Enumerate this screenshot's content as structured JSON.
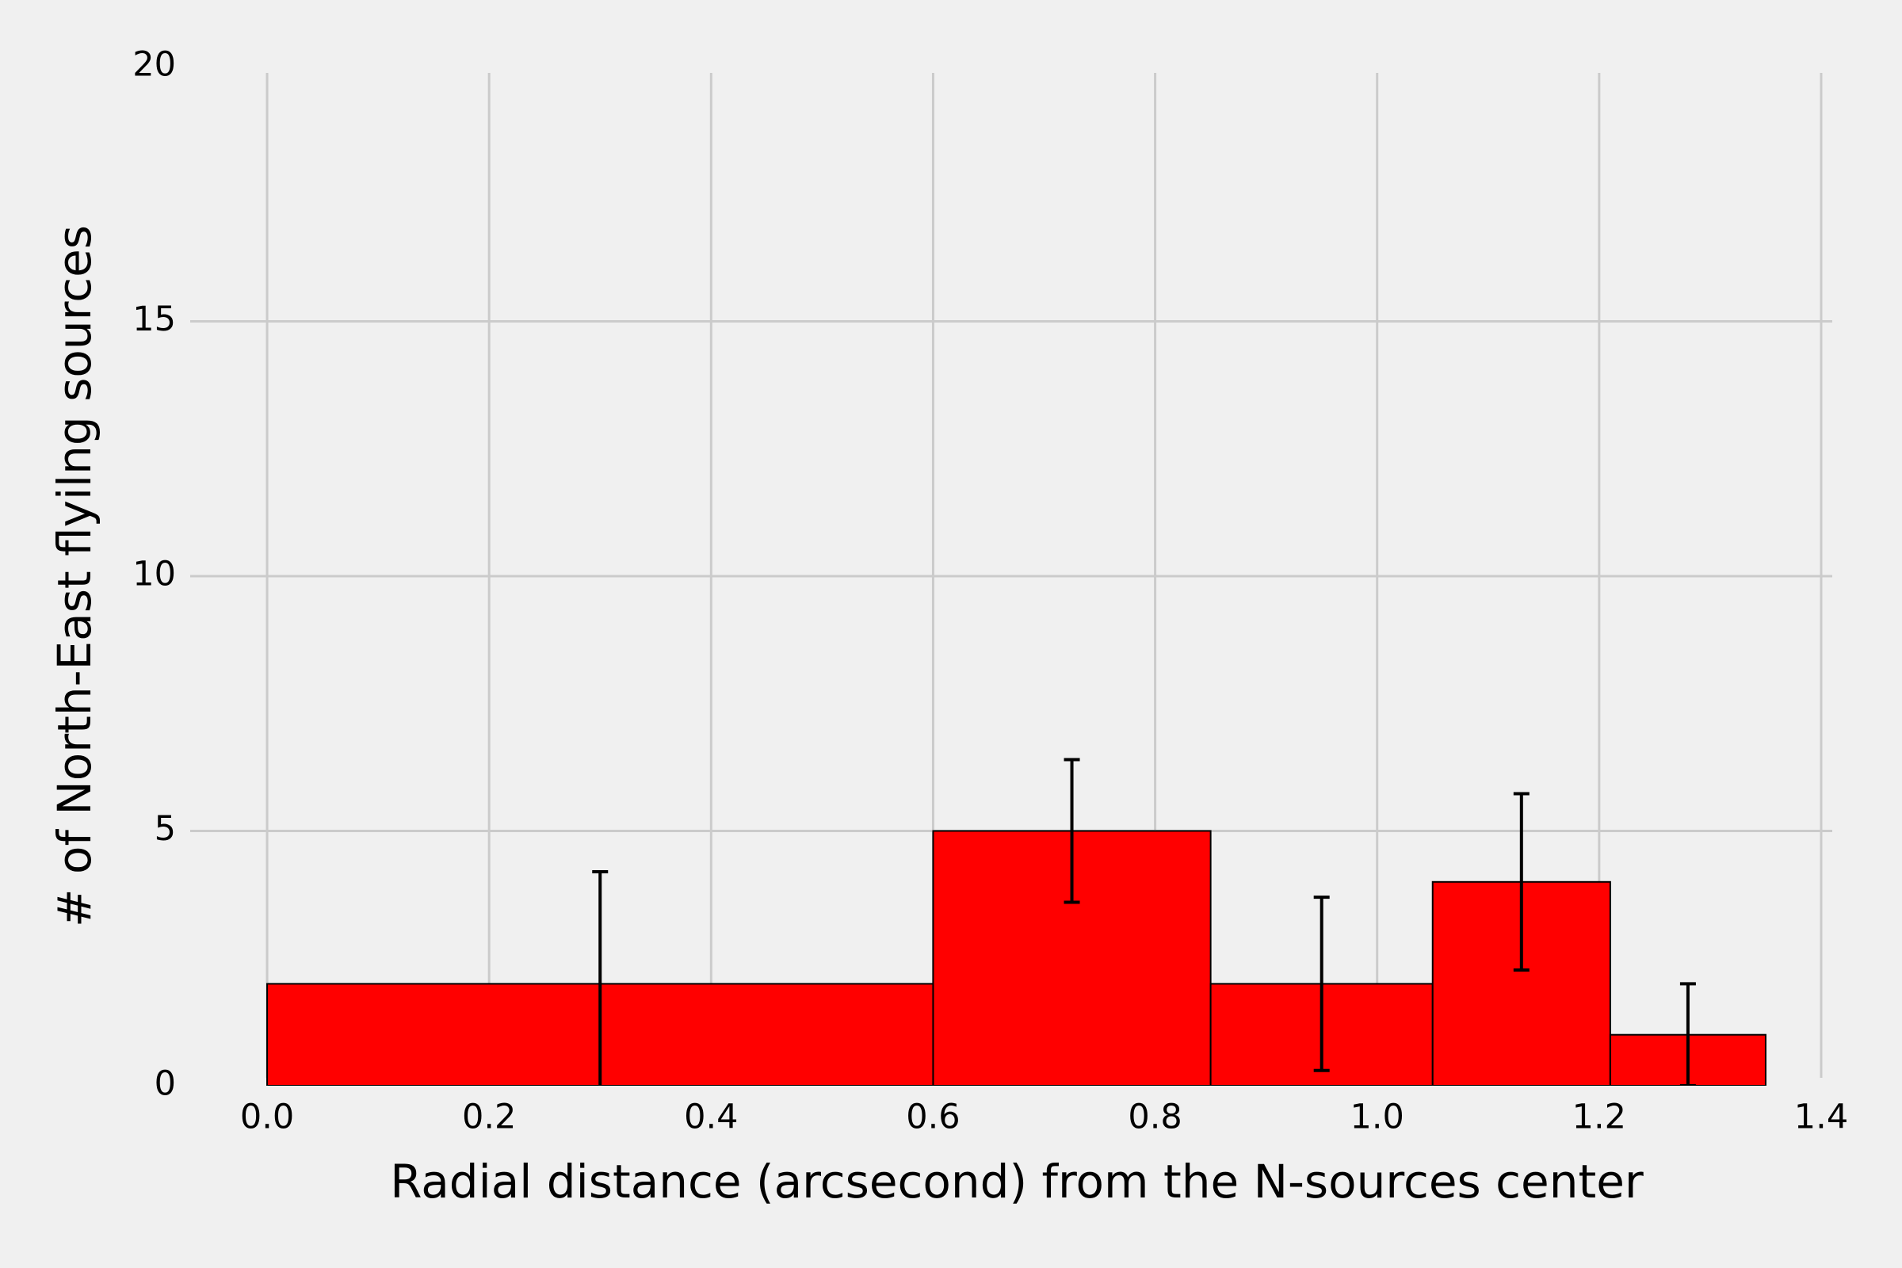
{
  "chart_data": {
    "type": "histogram",
    "xlabel": "Radial distance (arcsecond) from the N-sources center",
    "ylabel": "# of North-East flyilng sources",
    "bins": [
      0,
      0.3,
      0.6,
      0.85,
      1.05,
      1.21,
      1.35
    ],
    "values": [
      2,
      2,
      5,
      2,
      4,
      1
    ],
    "color": "#ff0000",
    "edgecolor": "#000000",
    "errorbars": {
      "x": [
        0.3,
        0.725,
        0.95,
        1.13,
        1.28
      ],
      "values": [
        2,
        5,
        2,
        4,
        1
      ],
      "errors": [
        2.2,
        1.4,
        1.7,
        1.73,
        1
      ],
      "color": "#000000"
    },
    "xlim": [
      -0.06,
      1.41
    ],
    "ylim": [
      0,
      20
    ],
    "xticks": [
      {
        "value": 0,
        "label": "0.0"
      },
      {
        "value": 0.2,
        "label": "0.2"
      },
      {
        "value": 0.4,
        "label": "0.4"
      },
      {
        "value": 0.6,
        "label": "0.6"
      },
      {
        "value": 0.8,
        "label": "0.8"
      },
      {
        "value": 1,
        "label": "1.0"
      },
      {
        "value": 1.2,
        "label": "1.2"
      },
      {
        "value": 1.4,
        "label": "1.4"
      }
    ],
    "yticks": [
      0,
      5,
      10,
      15,
      20
    ],
    "grid": true
  }
}
